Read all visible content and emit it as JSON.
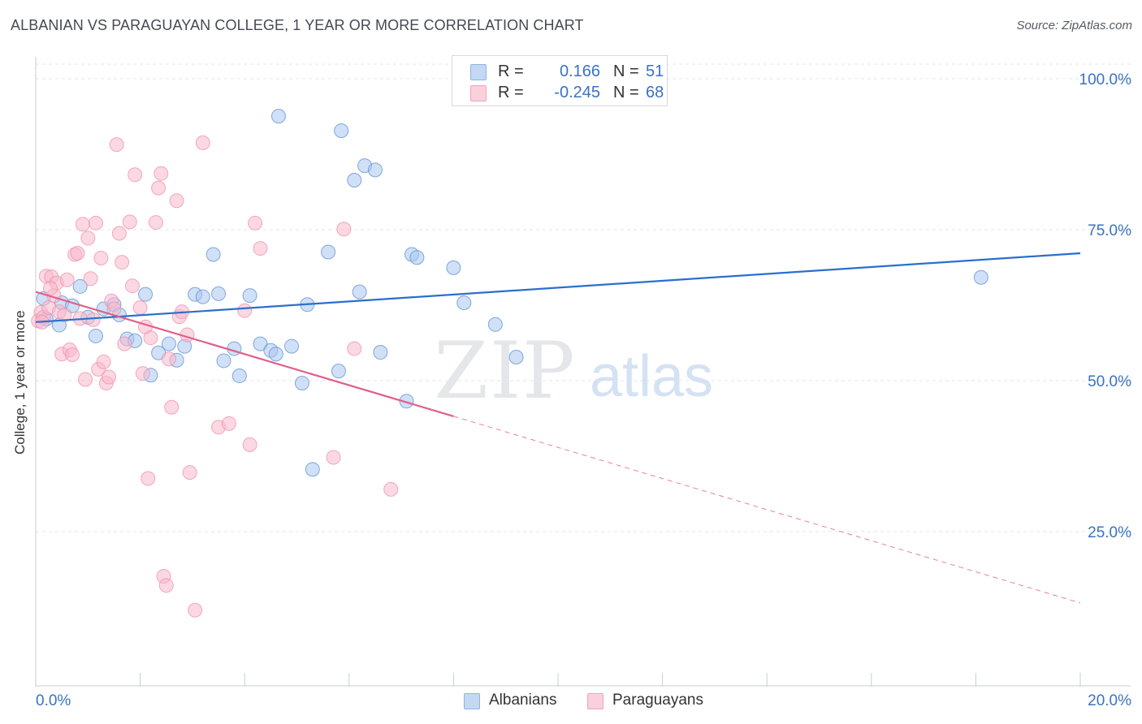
{
  "header": {
    "title": "ALBANIAN VS PARAGUAYAN COLLEGE, 1 YEAR OR MORE CORRELATION CHART",
    "source": "Source: ZipAtlas.com"
  },
  "watermark": {
    "zip": "ZIP",
    "atlas": "atlas"
  },
  "legend": {
    "r_label": "R =",
    "n_label": "N =",
    "rows": [
      {
        "name": "Albanians",
        "r": "0.166",
        "n": "51",
        "color": "#a9c6ef"
      },
      {
        "name": "Paraguayans",
        "r": "-0.245",
        "n": "68",
        "color": "#f7b8cb"
      }
    ]
  },
  "chart_data": {
    "type": "scatter",
    "title": "ALBANIAN VS PARAGUAYAN COLLEGE, 1 YEAR OR MORE CORRELATION CHART",
    "xlabel": "",
    "ylabel": "College, 1 year or more",
    "xlim": [
      0,
      20
    ],
    "ylim": [
      0,
      105
    ],
    "x_tick_labels": [
      "0.0%",
      "20.0%"
    ],
    "y_ticks": [
      25,
      50,
      75,
      100
    ],
    "y_tick_labels": [
      "25.0%",
      "50.0%",
      "75.0%",
      "100.0%"
    ],
    "grid": true,
    "legend_position": "top-center",
    "series": [
      {
        "name": "Albanians",
        "color": "#5b8fd6",
        "fill": "#a9c6ef",
        "trend": {
          "x": [
            0,
            20
          ],
          "y": [
            59.7,
            71.1
          ],
          "style": "solid",
          "color": "#2a6fcc"
        },
        "points": [
          [
            0.15,
            63.6
          ],
          [
            0.2,
            60.2
          ],
          [
            0.45,
            59.2
          ],
          [
            0.5,
            62.9
          ],
          [
            0.7,
            62.4
          ],
          [
            0.85,
            65.6
          ],
          [
            1.0,
            60.5
          ],
          [
            1.15,
            57.4
          ],
          [
            1.3,
            61.9
          ],
          [
            1.5,
            62.6
          ],
          [
            1.6,
            60.9
          ],
          [
            1.75,
            56.9
          ],
          [
            1.9,
            56.6
          ],
          [
            2.1,
            64.3
          ],
          [
            2.2,
            50.9
          ],
          [
            2.35,
            54.6
          ],
          [
            2.55,
            56.1
          ],
          [
            2.7,
            53.4
          ],
          [
            2.85,
            55.7
          ],
          [
            3.05,
            64.3
          ],
          [
            3.2,
            63.9
          ],
          [
            3.4,
            70.9
          ],
          [
            3.5,
            64.4
          ],
          [
            3.6,
            53.3
          ],
          [
            3.8,
            55.3
          ],
          [
            3.9,
            50.8
          ],
          [
            4.1,
            64.1
          ],
          [
            4.3,
            56.1
          ],
          [
            4.5,
            55.0
          ],
          [
            4.6,
            54.4
          ],
          [
            4.65,
            93.8
          ],
          [
            4.9,
            55.7
          ],
          [
            5.1,
            49.6
          ],
          [
            5.2,
            62.6
          ],
          [
            5.3,
            35.3
          ],
          [
            5.6,
            71.3
          ],
          [
            5.8,
            51.6
          ],
          [
            5.85,
            91.4
          ],
          [
            6.1,
            83.2
          ],
          [
            6.2,
            64.7
          ],
          [
            6.3,
            85.6
          ],
          [
            6.5,
            84.9
          ],
          [
            6.6,
            54.7
          ],
          [
            7.1,
            46.6
          ],
          [
            7.2,
            70.9
          ],
          [
            7.3,
            70.4
          ],
          [
            8.0,
            68.7
          ],
          [
            8.2,
            62.9
          ],
          [
            8.8,
            59.3
          ],
          [
            9.2,
            53.9
          ],
          [
            18.1,
            67.1
          ]
        ]
      },
      {
        "name": "Paraguayans",
        "color": "#ef8fab",
        "fill": "#f7b8cb",
        "trend": {
          "x": [
            0,
            8.0
          ],
          "y": [
            64.7,
            44.1
          ],
          "style": "solid",
          "color": "#e0608a",
          "extension": {
            "x": [
              8.0,
              20
            ],
            "y": [
              44.1,
              13.2
            ],
            "style": "dashed"
          }
        },
        "points": [
          [
            0.05,
            59.9
          ],
          [
            0.1,
            61.3
          ],
          [
            0.15,
            60.5
          ],
          [
            0.2,
            67.3
          ],
          [
            0.25,
            62.1
          ],
          [
            0.3,
            67.2
          ],
          [
            0.35,
            64.1
          ],
          [
            0.4,
            66.2
          ],
          [
            0.45,
            61.4
          ],
          [
            0.5,
            54.4
          ],
          [
            0.55,
            60.9
          ],
          [
            0.6,
            66.7
          ],
          [
            0.65,
            55.1
          ],
          [
            0.7,
            54.3
          ],
          [
            0.75,
            70.9
          ],
          [
            0.8,
            71.1
          ],
          [
            0.85,
            60.3
          ],
          [
            0.9,
            75.9
          ],
          [
            0.95,
            50.2
          ],
          [
            1.0,
            73.6
          ],
          [
            1.05,
            66.9
          ],
          [
            1.1,
            60.1
          ],
          [
            1.15,
            76.1
          ],
          [
            1.2,
            51.9
          ],
          [
            1.25,
            70.3
          ],
          [
            1.3,
            53.1
          ],
          [
            1.35,
            49.6
          ],
          [
            1.4,
            50.6
          ],
          [
            1.45,
            63.2
          ],
          [
            1.5,
            61.9
          ],
          [
            1.55,
            89.1
          ],
          [
            1.6,
            74.4
          ],
          [
            1.65,
            69.6
          ],
          [
            1.7,
            56.1
          ],
          [
            1.8,
            76.3
          ],
          [
            1.85,
            65.7
          ],
          [
            1.9,
            84.1
          ],
          [
            2.0,
            62.1
          ],
          [
            2.05,
            51.2
          ],
          [
            2.1,
            58.9
          ],
          [
            2.15,
            33.8
          ],
          [
            2.2,
            57.1
          ],
          [
            2.3,
            76.2
          ],
          [
            2.35,
            81.9
          ],
          [
            2.4,
            84.3
          ],
          [
            2.45,
            17.6
          ],
          [
            2.5,
            16.1
          ],
          [
            2.55,
            53.6
          ],
          [
            2.6,
            45.6
          ],
          [
            2.7,
            79.8
          ],
          [
            2.75,
            60.6
          ],
          [
            2.8,
            61.4
          ],
          [
            2.9,
            57.6
          ],
          [
            2.95,
            34.8
          ],
          [
            3.05,
            12.0
          ],
          [
            3.2,
            89.4
          ],
          [
            3.5,
            42.3
          ],
          [
            3.7,
            42.9
          ],
          [
            4.0,
            61.6
          ],
          [
            4.1,
            39.4
          ],
          [
            4.2,
            76.1
          ],
          [
            4.3,
            71.9
          ],
          [
            5.7,
            37.3
          ],
          [
            5.9,
            75.1
          ],
          [
            6.1,
            55.3
          ],
          [
            6.8,
            32.0
          ],
          [
            0.12,
            59.7
          ],
          [
            0.28,
            65.3
          ]
        ]
      }
    ]
  }
}
